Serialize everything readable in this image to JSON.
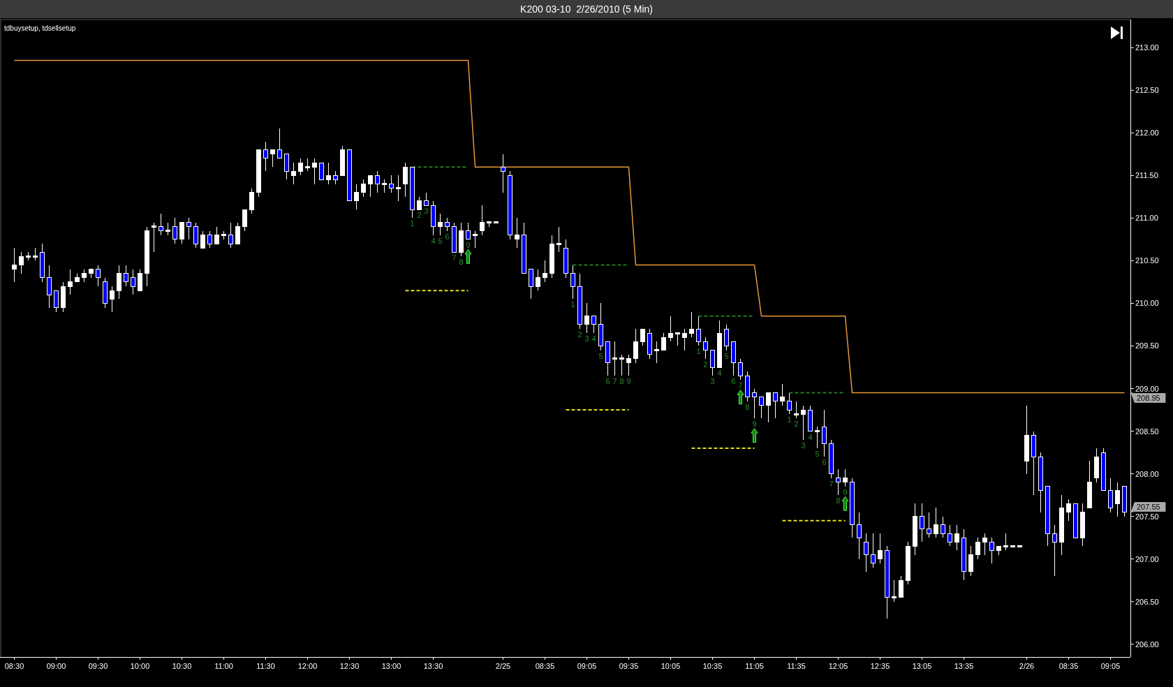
{
  "chart_data": {
    "type": "candlestick",
    "title": "K200 03-10  2/26/2010 (5 Min)",
    "annotations": [
      "tdbuysetup, tdsellsetup"
    ],
    "categories": [
      "08:30",
      null,
      null,
      null,
      null,
      null,
      "09:00",
      null,
      null,
      null,
      null,
      null,
      "09:30",
      null,
      null,
      null,
      null,
      null,
      "10:00",
      null,
      null,
      null,
      null,
      null,
      "10:30",
      null,
      null,
      null,
      null,
      null,
      "11:00",
      null,
      null,
      null,
      null,
      null,
      "11:30",
      null,
      null,
      null,
      null,
      null,
      "12:00",
      null,
      null,
      null,
      null,
      null,
      "12:30",
      null,
      null,
      null,
      null,
      null,
      "13:00",
      null,
      null,
      null,
      null,
      null,
      "13:30",
      null,
      null,
      null,
      null,
      null,
      null,
      null,
      null,
      null,
      "2/25",
      null,
      null,
      null,
      null,
      null,
      "08:35",
      null,
      null,
      null,
      null,
      null,
      "09:05",
      null,
      null,
      null,
      null,
      null,
      "09:35",
      null,
      null,
      null,
      null,
      null,
      "10:05",
      null,
      null,
      null,
      null,
      null,
      "10:35",
      null,
      null,
      null,
      null,
      null,
      "11:05",
      null,
      null,
      null,
      null,
      null,
      "11:35",
      null,
      null,
      null,
      null,
      null,
      "12:05",
      null,
      null,
      null,
      null,
      null,
      "12:35",
      null,
      null,
      null,
      null,
      null,
      "13:05",
      null,
      null,
      null,
      null,
      null,
      "13:35",
      null,
      null,
      null,
      null,
      null,
      null,
      null,
      null,
      "2/26",
      null,
      null,
      null,
      null,
      null,
      "08:35",
      null,
      null,
      null,
      null,
      null,
      "09:05",
      null,
      null
    ],
    "ohlc": [
      [
        210.4,
        210.65,
        210.25,
        210.45
      ],
      [
        210.45,
        210.6,
        210.35,
        210.55
      ],
      [
        210.55,
        210.6,
        210.5,
        210.55
      ],
      [
        210.55,
        210.65,
        210.5,
        210.55
      ],
      [
        210.6,
        210.7,
        210.25,
        210.3
      ],
      [
        210.3,
        210.45,
        209.95,
        210.1
      ],
      [
        210.15,
        210.15,
        209.9,
        209.95
      ],
      [
        209.95,
        210.25,
        209.9,
        210.2
      ],
      [
        210.2,
        210.4,
        210.1,
        210.25
      ],
      [
        210.25,
        210.35,
        210.25,
        210.3
      ],
      [
        210.3,
        210.4,
        210.25,
        210.35
      ],
      [
        210.35,
        210.4,
        210.3,
        210.4
      ],
      [
        210.4,
        210.45,
        210.2,
        210.3
      ],
      [
        210.25,
        210.3,
        209.95,
        210.0
      ],
      [
        210.05,
        210.2,
        209.9,
        210.15
      ],
      [
        210.15,
        210.45,
        210.05,
        210.35
      ],
      [
        210.35,
        210.45,
        210.2,
        210.25
      ],
      [
        210.3,
        210.4,
        210.1,
        210.2
      ],
      [
        210.15,
        210.4,
        210.15,
        210.35
      ],
      [
        210.35,
        210.9,
        210.2,
        210.85
      ],
      [
        210.9,
        210.95,
        210.6,
        210.9
      ],
      [
        210.9,
        211.05,
        210.8,
        210.85
      ],
      [
        210.85,
        210.95,
        210.8,
        210.85
      ],
      [
        210.9,
        211.0,
        210.7,
        210.75
      ],
      [
        210.75,
        210.95,
        210.7,
        210.95
      ],
      [
        210.95,
        211.0,
        210.75,
        210.9
      ],
      [
        210.9,
        210.95,
        210.65,
        210.7
      ],
      [
        210.65,
        210.85,
        210.65,
        210.8
      ],
      [
        210.8,
        210.85,
        210.65,
        210.7
      ],
      [
        210.7,
        210.9,
        210.7,
        210.8
      ],
      [
        210.8,
        210.85,
        210.75,
        210.8
      ],
      [
        210.8,
        210.95,
        210.65,
        210.7
      ],
      [
        210.7,
        210.95,
        210.7,
        210.9
      ],
      [
        210.9,
        211.1,
        210.85,
        211.1
      ],
      [
        211.1,
        211.35,
        211.05,
        211.3
      ],
      [
        211.3,
        211.8,
        211.25,
        211.8
      ],
      [
        211.8,
        211.9,
        211.55,
        211.7
      ],
      [
        211.75,
        211.8,
        211.6,
        211.8
      ],
      [
        211.8,
        212.05,
        211.7,
        211.7
      ],
      [
        211.75,
        211.75,
        211.45,
        211.55
      ],
      [
        211.5,
        211.65,
        211.4,
        211.55
      ],
      [
        211.55,
        211.7,
        211.5,
        211.65
      ],
      [
        211.6,
        211.7,
        211.55,
        211.6
      ],
      [
        211.6,
        211.7,
        211.4,
        211.65
      ],
      [
        211.65,
        211.65,
        211.45,
        211.45
      ],
      [
        211.45,
        211.65,
        211.4,
        211.5
      ],
      [
        211.5,
        211.55,
        211.4,
        211.45
      ],
      [
        211.5,
        211.85,
        211.5,
        211.8
      ],
      [
        211.8,
        211.8,
        211.2,
        211.2
      ],
      [
        211.2,
        211.4,
        211.1,
        211.3
      ],
      [
        211.3,
        211.45,
        211.25,
        211.4
      ],
      [
        211.4,
        211.5,
        211.25,
        211.5
      ],
      [
        211.5,
        211.55,
        211.3,
        211.4
      ],
      [
        211.4,
        211.45,
        211.3,
        211.4
      ],
      [
        211.4,
        211.5,
        211.3,
        211.35
      ],
      [
        211.35,
        211.5,
        211.2,
        211.35
      ],
      [
        211.4,
        211.65,
        211.25,
        211.6
      ],
      [
        211.6,
        211.6,
        211.0,
        211.1
      ],
      [
        211.1,
        211.25,
        211.1,
        211.2
      ],
      [
        211.2,
        211.3,
        211.15,
        211.15
      ],
      [
        211.15,
        211.2,
        210.8,
        210.9
      ],
      [
        210.9,
        211.05,
        210.8,
        210.95
      ],
      [
        210.95,
        211.0,
        210.85,
        210.9
      ],
      [
        210.9,
        210.95,
        210.6,
        210.6
      ],
      [
        210.6,
        210.95,
        210.55,
        210.85
      ],
      [
        210.85,
        210.95,
        210.75,
        210.75
      ],
      [
        210.8,
        210.85,
        210.65,
        210.8
      ],
      [
        210.85,
        211.15,
        210.8,
        210.95
      ],
      [
        210.95,
        210.95,
        210.9,
        210.95
      ],
      [
        210.95,
        210.95,
        210.95,
        210.95
      ],
      [
        211.6,
        211.75,
        211.3,
        211.55
      ],
      [
        211.5,
        211.55,
        210.75,
        210.8
      ],
      [
        210.75,
        211.0,
        210.65,
        210.8
      ],
      [
        210.8,
        210.95,
        210.35,
        210.35
      ],
      [
        210.4,
        210.4,
        210.05,
        210.2
      ],
      [
        210.2,
        210.4,
        210.15,
        210.3
      ],
      [
        210.3,
        210.5,
        210.25,
        210.35
      ],
      [
        210.35,
        210.8,
        210.3,
        210.7
      ],
      [
        210.7,
        210.9,
        210.6,
        210.7
      ],
      [
        210.65,
        210.75,
        210.3,
        210.35
      ],
      [
        210.35,
        210.45,
        210.05,
        210.2
      ],
      [
        210.2,
        210.35,
        209.7,
        209.75
      ],
      [
        209.75,
        210.0,
        209.65,
        209.85
      ],
      [
        209.85,
        209.85,
        209.65,
        209.75
      ],
      [
        209.75,
        210.0,
        209.45,
        209.5
      ],
      [
        209.55,
        209.55,
        209.15,
        209.3
      ],
      [
        209.35,
        209.55,
        209.15,
        209.35
      ],
      [
        209.35,
        209.4,
        209.15,
        209.35
      ],
      [
        209.3,
        209.4,
        209.15,
        209.35
      ],
      [
        209.35,
        209.7,
        209.3,
        209.55
      ],
      [
        209.55,
        209.7,
        209.5,
        209.7
      ],
      [
        209.65,
        209.7,
        209.35,
        209.4
      ],
      [
        209.45,
        209.55,
        209.3,
        209.45
      ],
      [
        209.45,
        209.65,
        209.45,
        209.6
      ],
      [
        209.6,
        209.85,
        209.55,
        209.65
      ],
      [
        209.65,
        209.65,
        209.5,
        209.65
      ],
      [
        209.6,
        209.7,
        209.45,
        209.65
      ],
      [
        209.65,
        209.9,
        209.6,
        209.7
      ],
      [
        209.7,
        209.85,
        209.5,
        209.55
      ],
      [
        209.55,
        209.6,
        209.35,
        209.45
      ],
      [
        209.45,
        209.45,
        209.15,
        209.25
      ],
      [
        209.25,
        209.8,
        209.25,
        209.65
      ],
      [
        209.7,
        209.75,
        209.45,
        209.5
      ],
      [
        209.55,
        209.55,
        209.15,
        209.3
      ],
      [
        209.3,
        209.35,
        209.1,
        209.15
      ],
      [
        209.15,
        209.2,
        208.85,
        208.9
      ],
      [
        208.95,
        209.0,
        208.65,
        208.9
      ],
      [
        208.9,
        208.9,
        208.65,
        208.8
      ],
      [
        208.8,
        208.95,
        208.6,
        208.95
      ],
      [
        208.95,
        208.95,
        208.65,
        208.85
      ],
      [
        208.85,
        209.05,
        208.8,
        208.9
      ],
      [
        208.85,
        208.95,
        208.7,
        208.75
      ],
      [
        208.7,
        208.85,
        208.65,
        208.7
      ],
      [
        208.7,
        208.8,
        208.4,
        208.75
      ],
      [
        208.75,
        208.8,
        208.5,
        208.5
      ],
      [
        208.5,
        208.55,
        208.3,
        208.5
      ],
      [
        208.55,
        208.75,
        208.2,
        208.35
      ],
      [
        208.35,
        208.4,
        207.95,
        208.0
      ],
      [
        207.95,
        208.05,
        207.75,
        207.9
      ],
      [
        207.9,
        208.05,
        207.85,
        207.95
      ],
      [
        207.9,
        207.95,
        207.25,
        207.4
      ],
      [
        207.4,
        207.55,
        207.0,
        207.25
      ],
      [
        207.2,
        207.3,
        206.85,
        207.05
      ],
      [
        207.05,
        207.3,
        206.9,
        206.95
      ],
      [
        207.0,
        207.3,
        206.95,
        207.1
      ],
      [
        207.1,
        207.15,
        206.3,
        206.55
      ],
      [
        206.55,
        206.75,
        206.5,
        206.55
      ],
      [
        206.55,
        206.8,
        206.55,
        206.75
      ],
      [
        206.75,
        207.2,
        206.7,
        207.15
      ],
      [
        207.15,
        207.65,
        207.05,
        207.5
      ],
      [
        207.5,
        207.65,
        207.2,
        207.35
      ],
      [
        207.35,
        207.55,
        207.25,
        207.3
      ],
      [
        207.3,
        207.6,
        207.25,
        207.4
      ],
      [
        207.4,
        207.5,
        207.25,
        207.3
      ],
      [
        207.3,
        207.4,
        207.15,
        207.2
      ],
      [
        207.2,
        207.4,
        207.1,
        207.3
      ],
      [
        207.25,
        207.35,
        206.75,
        206.85
      ],
      [
        206.85,
        207.15,
        206.8,
        207.05
      ],
      [
        207.05,
        207.25,
        207.0,
        207.2
      ],
      [
        207.2,
        207.3,
        207.05,
        207.25
      ],
      [
        207.2,
        207.25,
        206.95,
        207.1
      ],
      [
        207.1,
        207.15,
        207.05,
        207.15
      ],
      [
        207.15,
        207.3,
        207.1,
        207.15
      ],
      [
        207.15,
        207.15,
        207.15,
        207.15
      ],
      [
        207.15,
        207.15,
        207.15,
        207.15
      ],
      [
        208.15,
        208.8,
        208.0,
        208.45
      ],
      [
        208.45,
        208.5,
        207.75,
        208.2
      ],
      [
        208.2,
        208.25,
        207.55,
        207.8
      ],
      [
        207.85,
        207.85,
        207.15,
        207.3
      ],
      [
        207.3,
        207.4,
        206.8,
        207.2
      ],
      [
        207.2,
        207.75,
        207.05,
        207.6
      ],
      [
        207.55,
        207.7,
        207.45,
        207.65
      ],
      [
        207.65,
        207.65,
        207.25,
        207.25
      ],
      [
        207.25,
        207.65,
        207.15,
        207.55
      ],
      [
        207.6,
        208.15,
        207.6,
        207.9
      ],
      [
        207.95,
        208.3,
        207.9,
        208.2
      ],
      [
        208.25,
        208.3,
        207.8,
        207.8
      ],
      [
        207.8,
        207.95,
        207.55,
        207.6
      ],
      [
        207.65,
        207.9,
        207.5,
        207.8
      ],
      [
        207.85,
        207.85,
        207.5,
        207.55
      ]
    ],
    "colors": [
      "#ffffff",
      "#ffffff",
      "#ffffff",
      "#ffffff",
      "#0000ff",
      "#0000ff",
      "#0000ff",
      "#ffffff",
      "#ffffff",
      "#ffffff",
      "#ffffff",
      "#ffffff",
      "#0000ff",
      "#0000ff",
      "#ffffff",
      "#ffffff",
      "#0000ff",
      "#0000ff",
      "#ffffff",
      "#ffffff",
      "#ffffff",
      "#0000ff",
      "#ffffff",
      "#0000ff",
      "#ffffff",
      "#0000ff",
      "#0000ff",
      "#ffffff",
      "#0000ff",
      "#ffffff",
      "#ffffff",
      "#0000ff",
      "#ffffff",
      "#ffffff",
      "#ffffff",
      "#ffffff",
      "#0000ff",
      "#ffffff",
      "#0000ff",
      "#0000ff",
      "#ffffff",
      "#ffffff",
      "#ffffff",
      "#ffffff",
      "#0000ff",
      "#ffffff",
      "#0000ff",
      "#ffffff",
      "#0000ff",
      "#ffffff",
      "#ffffff",
      "#ffffff",
      "#0000ff",
      "#ffffff",
      "#0000ff",
      "#ffffff",
      "#ffffff",
      "#0000ff",
      "#ffffff",
      "#0000ff",
      "#0000ff",
      "#ffffff",
      "#0000ff",
      "#0000ff",
      "#ffffff",
      "#0000ff",
      "#ffffff",
      "#ffffff",
      "#ffffff",
      "#ffffff",
      "#0000ff",
      "#0000ff",
      "#ffffff",
      "#0000ff",
      "#0000ff",
      "#ffffff",
      "#ffffff",
      "#ffffff",
      "#ffffff",
      "#0000ff",
      "#0000ff",
      "#0000ff",
      "#ffffff",
      "#0000ff",
      "#0000ff",
      "#0000ff",
      "#ffffff",
      "#ffffff",
      "#ffffff",
      "#ffffff",
      "#ffffff",
      "#0000ff",
      "#ffffff",
      "#ffffff",
      "#ffffff",
      "#ffffff",
      "#ffffff",
      "#ffffff",
      "#0000ff",
      "#0000ff",
      "#0000ff",
      "#ffffff",
      "#0000ff",
      "#0000ff",
      "#0000ff",
      "#0000ff",
      "#0000ff",
      "#0000ff",
      "#ffffff",
      "#0000ff",
      "#ffffff",
      "#0000ff",
      "#ffffff",
      "#ffffff",
      "#0000ff",
      "#ffffff",
      "#0000ff",
      "#0000ff",
      "#0000ff",
      "#ffffff",
      "#0000ff",
      "#0000ff",
      "#0000ff",
      "#0000ff",
      "#ffffff",
      "#0000ff",
      "#ffffff",
      "#ffffff",
      "#ffffff",
      "#ffffff",
      "#0000ff",
      "#0000ff",
      "#ffffff",
      "#0000ff",
      "#0000ff",
      "#ffffff",
      "#0000ff",
      "#ffffff",
      "#ffffff",
      "#ffffff",
      "#0000ff",
      "#ffffff",
      "#ffffff",
      "#ffffff",
      "#ffffff",
      "#ffffff",
      "#0000ff",
      "#0000ff",
      "#0000ff",
      "#0000ff",
      "#ffffff",
      "#ffffff",
      "#0000ff",
      "#ffffff",
      "#ffffff",
      "#ffffff",
      "#0000ff",
      "#0000ff",
      "#ffffff",
      "#0000ff"
    ],
    "value_labels": [
      null,
      null,
      null,
      null,
      null,
      null,
      null,
      null,
      null,
      null,
      null,
      null,
      null,
      null,
      null,
      null,
      null,
      null,
      null,
      null,
      null,
      null,
      null,
      null,
      null,
      null,
      null,
      null,
      null,
      null,
      null,
      null,
      null,
      null,
      null,
      null,
      null,
      null,
      null,
      null,
      null,
      null,
      null,
      null,
      null,
      null,
      null,
      null,
      null,
      null,
      null,
      null,
      null,
      null,
      null,
      null,
      null,
      "1",
      "2",
      "3",
      "4",
      "5",
      "6",
      "7",
      "8",
      "9",
      null,
      null,
      null,
      null,
      null,
      null,
      null,
      null,
      null,
      null,
      null,
      null,
      null,
      null,
      "1",
      "2",
      "3",
      "4",
      "5",
      "6",
      "7",
      "8",
      "9",
      null,
      null,
      null,
      null,
      null,
      null,
      null,
      null,
      null,
      "1",
      "2",
      "3",
      "4",
      "5",
      "6",
      "7",
      "8",
      "9",
      null,
      null,
      null,
      null,
      "1",
      "2",
      "3",
      "4",
      "5",
      "6",
      "7",
      "8",
      "9",
      null,
      null,
      null,
      null,
      null,
      null,
      null,
      null,
      null,
      null,
      null,
      null,
      null,
      null,
      null,
      null,
      null,
      null,
      null,
      null,
      null,
      null,
      null,
      null,
      null,
      null,
      null,
      null,
      null,
      null,
      null,
      null,
      null,
      null,
      null,
      null,
      null,
      null,
      null,
      "207.55"
    ],
    "series": [
      {
        "type": "line",
        "color": "#e69a3c",
        "values": [
          212.85,
          212.85,
          212.85,
          212.85,
          212.85,
          212.85,
          212.85,
          212.85,
          212.85,
          212.85,
          212.85,
          212.85,
          212.85,
          212.85,
          212.85,
          212.85,
          212.85,
          212.85,
          212.85,
          212.85,
          212.85,
          212.85,
          212.85,
          212.85,
          212.85,
          212.85,
          212.85,
          212.85,
          212.85,
          212.85,
          212.85,
          212.85,
          212.85,
          212.85,
          212.85,
          212.85,
          212.85,
          212.85,
          212.85,
          212.85,
          212.85,
          212.85,
          212.85,
          212.85,
          212.85,
          212.85,
          212.85,
          212.85,
          212.85,
          212.85,
          212.85,
          212.85,
          212.85,
          212.85,
          212.85,
          212.85,
          212.85,
          212.85,
          212.85,
          212.85,
          212.85,
          212.85,
          212.85,
          212.85,
          212.85,
          212.85,
          211.6,
          211.6,
          211.6,
          211.6,
          211.6,
          211.6,
          211.6,
          211.6,
          211.6,
          211.6,
          211.6,
          211.6,
          211.6,
          211.6,
          211.6,
          211.6,
          211.6,
          211.6,
          211.6,
          211.6,
          211.6,
          211.6,
          211.6,
          210.45,
          210.45,
          210.45,
          210.45,
          210.45,
          210.45,
          210.45,
          210.45,
          210.45,
          210.45,
          210.45,
          210.45,
          210.45,
          210.45,
          210.45,
          210.45,
          210.45,
          210.45,
          209.85,
          209.85,
          209.85,
          209.85,
          209.85,
          209.85,
          209.85,
          209.85,
          209.85,
          209.85,
          209.85,
          209.85,
          209.85,
          208.95,
          208.95,
          208.95,
          208.95,
          208.95,
          208.95,
          208.95,
          208.95,
          208.95,
          208.95,
          208.95,
          208.95,
          208.95,
          208.95,
          208.95,
          208.95,
          208.95,
          208.95,
          208.95,
          208.95,
          208.95,
          208.95,
          208.95,
          208.95,
          208.95,
          208.95,
          208.95,
          208.95,
          208.95,
          208.95,
          208.95,
          208.95,
          208.95,
          208.95,
          208.95,
          208.95,
          208.95,
          208.95,
          208.95,
          208.95
        ],
        "value_labels": [
          null,
          null,
          null,
          null,
          null,
          null,
          null,
          null,
          null,
          null,
          null,
          null,
          null,
          null,
          null,
          null,
          null,
          null,
          null,
          null,
          null,
          null,
          null,
          null,
          null,
          null,
          null,
          null,
          null,
          null,
          null,
          null,
          null,
          null,
          null,
          null,
          null,
          null,
          null,
          null,
          null,
          null,
          null,
          null,
          null,
          null,
          null,
          null,
          null,
          null,
          null,
          null,
          null,
          null,
          null,
          null,
          null,
          null,
          null,
          null,
          null,
          null,
          null,
          null,
          null,
          null,
          null,
          null,
          null,
          null,
          null,
          null,
          null,
          null,
          null,
          null,
          null,
          null,
          null,
          null,
          null,
          null,
          null,
          null,
          null,
          null,
          null,
          null,
          null,
          null,
          null,
          null,
          null,
          null,
          null,
          null,
          null,
          null,
          null,
          null,
          null,
          null,
          null,
          null,
          null,
          null,
          null,
          null,
          null,
          null,
          null,
          null,
          null,
          null,
          null,
          null,
          null,
          null,
          null,
          null,
          null,
          null,
          null,
          null,
          null,
          null,
          null,
          null,
          null,
          null,
          null,
          null,
          null,
          null,
          null,
          null,
          null,
          null,
          null,
          null,
          null,
          null,
          null,
          null,
          null,
          null,
          null,
          null,
          null,
          null,
          null,
          null,
          null,
          null,
          null,
          null,
          null,
          null,
          null,
          "208.95"
        ]
      },
      {
        "type": "line",
        "color": "#1e7b1e",
        "line_style": "dashed",
        "values": [
          null,
          null,
          null,
          null,
          null,
          null,
          null,
          null,
          null,
          null,
          null,
          null,
          null,
          null,
          null,
          null,
          null,
          null,
          null,
          null,
          null,
          null,
          null,
          null,
          null,
          null,
          null,
          null,
          null,
          null,
          null,
          null,
          null,
          null,
          null,
          null,
          null,
          null,
          null,
          null,
          null,
          null,
          null,
          null,
          null,
          null,
          null,
          null,
          null,
          null,
          null,
          null,
          null,
          null,
          null,
          null,
          null,
          211.6,
          211.6,
          211.6,
          211.6,
          211.6,
          211.6,
          211.6,
          211.6,
          211.6,
          null,
          null,
          null,
          null,
          null,
          null,
          null,
          null,
          null,
          null,
          null,
          null,
          null,
          null,
          210.45,
          210.45,
          210.45,
          210.45,
          210.45,
          210.45,
          210.45,
          210.45,
          210.45,
          null,
          null,
          null,
          null,
          null,
          null,
          null,
          null,
          null,
          209.85,
          209.85,
          209.85,
          209.85,
          209.85,
          209.85,
          209.85,
          209.85,
          209.85,
          null,
          null,
          null,
          null,
          208.95,
          208.95,
          208.95,
          208.95,
          208.95,
          208.95,
          208.95,
          208.95,
          208.95,
          null,
          null,
          null,
          null,
          null,
          null,
          null,
          null,
          null,
          null,
          null,
          null,
          null,
          null,
          null,
          null,
          null,
          null,
          null,
          null,
          null,
          null,
          null,
          null,
          null,
          null,
          null,
          null,
          null,
          null,
          null,
          null,
          null,
          null,
          null,
          null,
          null,
          null,
          null,
          null
        ]
      },
      {
        "type": "line",
        "color": "#e0e01e",
        "line_style": "dashed",
        "values": [
          null,
          null,
          null,
          null,
          null,
          null,
          null,
          null,
          null,
          null,
          null,
          null,
          null,
          null,
          null,
          null,
          null,
          null,
          null,
          null,
          null,
          null,
          null,
          null,
          null,
          null,
          null,
          null,
          null,
          null,
          null,
          null,
          null,
          null,
          null,
          null,
          null,
          null,
          null,
          null,
          null,
          null,
          null,
          null,
          null,
          null,
          null,
          null,
          null,
          null,
          null,
          null,
          null,
          null,
          null,
          null,
          210.15,
          210.15,
          210.15,
          210.15,
          210.15,
          210.15,
          210.15,
          210.15,
          210.15,
          210.15,
          null,
          null,
          null,
          null,
          null,
          null,
          null,
          null,
          null,
          null,
          null,
          null,
          null,
          208.75,
          208.75,
          208.75,
          208.75,
          208.75,
          208.75,
          208.75,
          208.75,
          208.75,
          208.75,
          null,
          null,
          null,
          null,
          null,
          null,
          null,
          null,
          208.3,
          208.3,
          208.3,
          208.3,
          208.3,
          208.3,
          208.3,
          208.3,
          208.3,
          208.3,
          null,
          null,
          null,
          207.45,
          207.45,
          207.45,
          207.45,
          207.45,
          207.45,
          207.45,
          207.45,
          207.45,
          207.45,
          null,
          null,
          null,
          null,
          null,
          null,
          null,
          null,
          null,
          null,
          null,
          null,
          null,
          null,
          null,
          null,
          null,
          null,
          null,
          null,
          null,
          null,
          null,
          null,
          null,
          null,
          null,
          null,
          null,
          null,
          null,
          null,
          null,
          null,
          null,
          null,
          null,
          null,
          null,
          null
        ]
      },
      {
        "type": "scatter",
        "marker": "triangle",
        "color": "#1c7d1c",
        "values": [
          null,
          null,
          null,
          null,
          null,
          null,
          null,
          null,
          null,
          null,
          null,
          null,
          null,
          null,
          null,
          null,
          null,
          null,
          null,
          null,
          null,
          null,
          null,
          null,
          null,
          null,
          null,
          null,
          null,
          null,
          null,
          null,
          null,
          null,
          null,
          null,
          null,
          null,
          null,
          null,
          null,
          null,
          null,
          null,
          null,
          null,
          null,
          null,
          null,
          null,
          null,
          null,
          null,
          null,
          null,
          null,
          null,
          null,
          null,
          null,
          null,
          null,
          null,
          null,
          null,
          210.55,
          null,
          null,
          null,
          null,
          null,
          null,
          null,
          null,
          null,
          null,
          null,
          null,
          null,
          null,
          null,
          null,
          null,
          null,
          null,
          null,
          null,
          null,
          null,
          null,
          null,
          null,
          null,
          null,
          null,
          null,
          null,
          null,
          null,
          null,
          null,
          null,
          null,
          null,
          208.9,
          null,
          208.45,
          null,
          null,
          null,
          null,
          null,
          null,
          null,
          null,
          null,
          null,
          null,
          null,
          207.65,
          null,
          null,
          null,
          null,
          null,
          null,
          null,
          null,
          null,
          null,
          null,
          null,
          null,
          null,
          null,
          null,
          null,
          null,
          null,
          null,
          null,
          null,
          null,
          null,
          null,
          null,
          null,
          null,
          null,
          null,
          null,
          null,
          null,
          null,
          null,
          null,
          null,
          null,
          null,
          null
        ]
      }
    ],
    "ylim": [
      205.85,
      213.33
    ],
    "yticks": [
      {
        "value": 206,
        "label": "206.00"
      },
      {
        "value": 206.5,
        "label": "206.50"
      },
      {
        "value": 207,
        "label": "207.00"
      },
      {
        "value": 207.5,
        "label": "207.50"
      },
      {
        "value": 208,
        "label": "208.00"
      },
      {
        "value": 208.5,
        "label": "208.50"
      },
      {
        "value": 209,
        "label": "209.00"
      },
      {
        "value": 209.5,
        "label": "209.50"
      },
      {
        "value": 210,
        "label": "210.00"
      },
      {
        "value": 210.5,
        "label": "210.50"
      },
      {
        "value": 211,
        "label": "211.00"
      },
      {
        "value": 211.5,
        "label": "211.50"
      },
      {
        "value": 212,
        "label": "212.00"
      },
      {
        "value": 212.5,
        "label": "212.50"
      },
      {
        "value": 213,
        "label": "213.00"
      }
    ]
  }
}
